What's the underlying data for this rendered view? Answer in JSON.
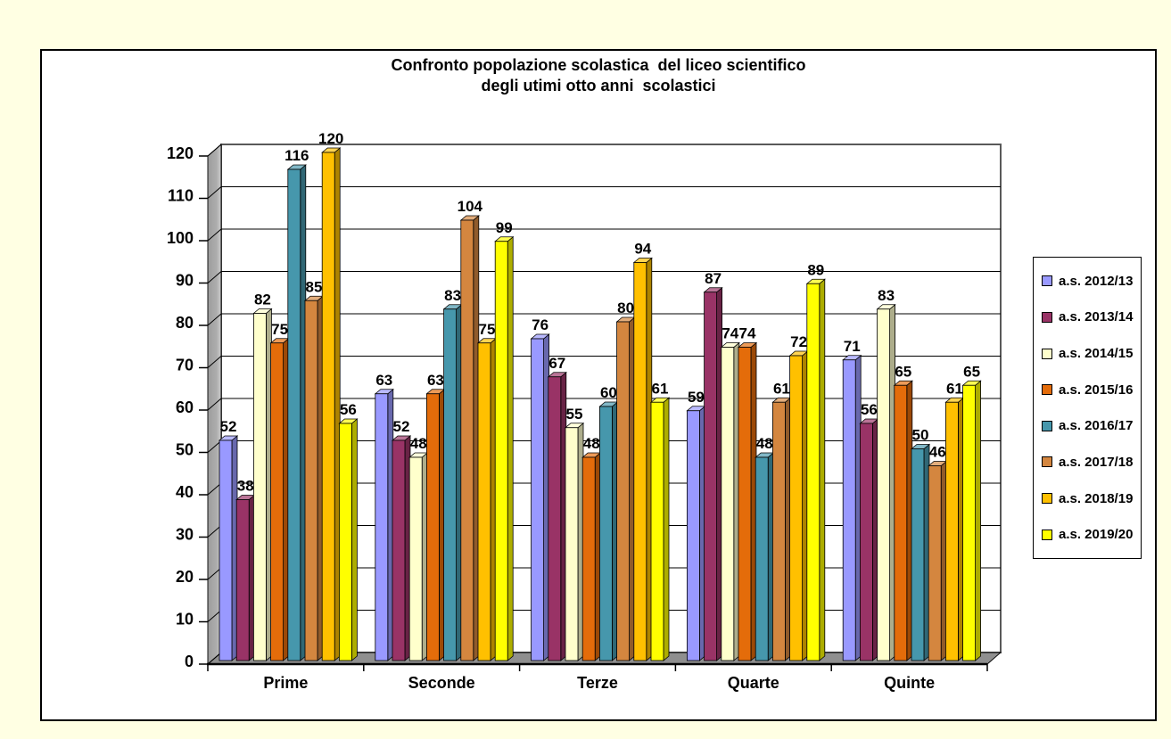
{
  "page": {
    "background_color": "#FFFFE3",
    "panel_background": "#FFFFFF",
    "panel_border_color": "#000000"
  },
  "chart_data": {
    "type": "bar",
    "style": "3d-clustered-column",
    "title_lines": [
      "Confronto popolazione scolastica  del liceo scientifico",
      "degli utimi otto anni  scolastici"
    ],
    "xlabel": "",
    "ylabel": "",
    "categories": [
      "Prime",
      "Seconde",
      "Terze",
      "Quarte",
      "Quinte"
    ],
    "series": [
      {
        "name": "a.s. 2012/13",
        "color": "#9999FF",
        "values": [
          52,
          63,
          76,
          59,
          71
        ]
      },
      {
        "name": "a.s. 2013/14",
        "color": "#993366",
        "values": [
          38,
          52,
          67,
          87,
          56
        ]
      },
      {
        "name": "a.s. 2014/15",
        "color": "#FFFFCC",
        "values": [
          82,
          48,
          55,
          74,
          83
        ]
      },
      {
        "name": "a.s. 2015/16",
        "color": "#E46C0A",
        "values": [
          75,
          63,
          48,
          74,
          65
        ]
      },
      {
        "name": "a.s. 2016/17",
        "color": "#4697AC",
        "values": [
          116,
          83,
          60,
          48,
          50
        ]
      },
      {
        "name": "a.s. 2017/18",
        "color": "#D4863F",
        "values": [
          85,
          104,
          80,
          61,
          46
        ]
      },
      {
        "name": "a.s. 2018/19",
        "color": "#FFC000",
        "values": [
          120,
          75,
          94,
          72,
          61
        ]
      },
      {
        "name": "a.s. 2019/20",
        "color": "#FFFF00",
        "values": [
          56,
          99,
          61,
          89,
          65
        ]
      }
    ],
    "ylim": [
      0,
      120
    ],
    "ytick_step": 10,
    "yticks": [
      "0",
      "10",
      "20",
      "30",
      "40",
      "50",
      "60",
      "70",
      "80",
      "90",
      "100",
      "110",
      "120"
    ],
    "grid": true,
    "data_labels": true,
    "legend_position": "right",
    "colors": {
      "side_wall": "#ABABAB",
      "floor": "#8F8F8F",
      "back_wall": "#FFFFFF",
      "gridline": "#000000",
      "outline": "#000000",
      "text": "#000000"
    }
  }
}
